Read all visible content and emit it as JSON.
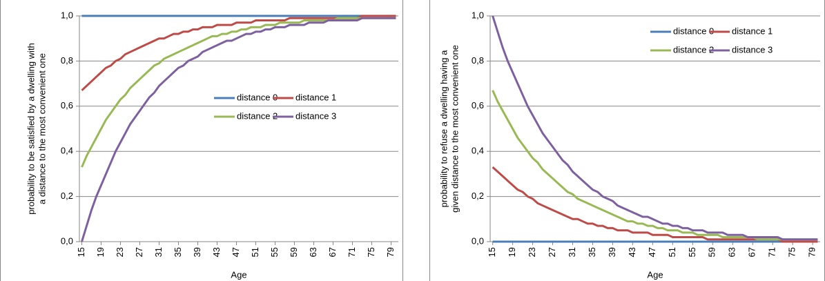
{
  "chart_data": [
    {
      "type": "line",
      "y_label": [
        "probability to be satisfied by a dwelling with",
        "a distance to the most convenient one"
      ],
      "x_label": "Age",
      "categories": [
        "15",
        null,
        null,
        null,
        "19",
        null,
        null,
        null,
        "23",
        null,
        null,
        null,
        "27",
        null,
        null,
        null,
        "31",
        null,
        null,
        null,
        "35",
        null,
        null,
        null,
        "39",
        null,
        null,
        null,
        "43",
        null,
        null,
        null,
        "47",
        null,
        null,
        null,
        "51",
        null,
        null,
        null,
        "55",
        null,
        null,
        null,
        "59",
        null,
        null,
        null,
        "63",
        null,
        null,
        null,
        "67",
        null,
        null,
        null,
        "71",
        null,
        null,
        null,
        "75",
        null,
        null,
        null,
        "79",
        null
      ],
      "ylim": [
        0,
        1
      ],
      "yticks": [
        {
          "value": 0,
          "label": "0,0"
        },
        {
          "value": 0.2,
          "label": "0,2"
        },
        {
          "value": 0.4,
          "label": "0,4"
        },
        {
          "value": 0.6,
          "label": "0,6"
        },
        {
          "value": 0.8,
          "label": "0,8"
        },
        {
          "value": 1,
          "label": "1,0"
        }
      ],
      "grid": true,
      "legend": "center-right",
      "series": [
        {
          "name": "distance 0",
          "color": "#4a7ebb",
          "values": [
            1,
            1,
            1,
            1,
            1,
            1,
            1,
            1,
            1,
            1,
            1,
            1,
            1,
            1,
            1,
            1,
            1,
            1,
            1,
            1,
            1,
            1,
            1,
            1,
            1,
            1,
            1,
            1,
            1,
            1,
            1,
            1,
            1,
            1,
            1,
            1,
            1,
            1,
            1,
            1,
            1,
            1,
            1,
            1,
            1,
            1,
            1,
            1,
            1,
            1,
            1,
            1,
            1,
            1,
            1,
            1,
            1,
            1,
            1,
            1,
            1,
            1,
            1,
            1,
            1,
            1
          ]
        },
        {
          "name": "distance 1",
          "color": "#be4b48",
          "values": [
            0.67,
            0.69,
            0.71,
            0.73,
            0.75,
            0.77,
            0.78,
            0.8,
            0.81,
            0.83,
            0.84,
            0.85,
            0.86,
            0.87,
            0.88,
            0.89,
            0.9,
            0.9,
            0.91,
            0.92,
            0.92,
            0.93,
            0.93,
            0.94,
            0.94,
            0.95,
            0.95,
            0.95,
            0.96,
            0.96,
            0.96,
            0.96,
            0.97,
            0.97,
            0.97,
            0.97,
            0.98,
            0.98,
            0.98,
            0.98,
            0.98,
            0.98,
            0.98,
            0.99,
            0.99,
            0.99,
            0.99,
            0.99,
            0.99,
            0.99,
            0.99,
            0.99,
            0.99,
            0.99,
            0.99,
            0.99,
            0.99,
            0.99,
            1,
            1,
            1,
            1,
            1,
            1,
            1,
            1
          ]
        },
        {
          "name": "distance 2",
          "color": "#98b954",
          "values": [
            0.33,
            0.38,
            0.42,
            0.46,
            0.5,
            0.54,
            0.57,
            0.6,
            0.63,
            0.65,
            0.68,
            0.7,
            0.72,
            0.74,
            0.76,
            0.78,
            0.79,
            0.81,
            0.82,
            0.83,
            0.84,
            0.85,
            0.86,
            0.87,
            0.88,
            0.89,
            0.9,
            0.91,
            0.91,
            0.92,
            0.92,
            0.93,
            0.93,
            0.94,
            0.94,
            0.95,
            0.95,
            0.95,
            0.96,
            0.96,
            0.96,
            0.97,
            0.97,
            0.97,
            0.97,
            0.97,
            0.98,
            0.98,
            0.98,
            0.98,
            0.98,
            0.98,
            0.98,
            0.99,
            0.99,
            0.99,
            0.99,
            0.99,
            0.99,
            0.99,
            0.99,
            0.99,
            0.99,
            0.99,
            0.99,
            0.99
          ]
        },
        {
          "name": "distance 3",
          "color": "#7d60a0",
          "values": [
            0,
            0.07,
            0.14,
            0.2,
            0.25,
            0.3,
            0.35,
            0.4,
            0.44,
            0.48,
            0.52,
            0.55,
            0.58,
            0.61,
            0.64,
            0.66,
            0.69,
            0.71,
            0.73,
            0.75,
            0.77,
            0.78,
            0.8,
            0.81,
            0.82,
            0.84,
            0.85,
            0.86,
            0.87,
            0.88,
            0.89,
            0.89,
            0.9,
            0.91,
            0.92,
            0.92,
            0.93,
            0.93,
            0.94,
            0.94,
            0.95,
            0.95,
            0.95,
            0.96,
            0.96,
            0.96,
            0.96,
            0.97,
            0.97,
            0.97,
            0.97,
            0.98,
            0.98,
            0.98,
            0.98,
            0.98,
            0.98,
            0.98,
            0.99,
            0.99,
            0.99,
            0.99,
            0.99,
            0.99,
            0.99,
            0.99
          ]
        }
      ]
    },
    {
      "type": "line",
      "y_label": [
        "probability to refuse a dwelling having a",
        "given distance to the most convenient one"
      ],
      "x_label": "Age",
      "categories": [
        "15",
        null,
        null,
        null,
        "19",
        null,
        null,
        null,
        "23",
        null,
        null,
        null,
        "27",
        null,
        null,
        null,
        "31",
        null,
        null,
        null,
        "35",
        null,
        null,
        null,
        "39",
        null,
        null,
        null,
        "43",
        null,
        null,
        null,
        "47",
        null,
        null,
        null,
        "51",
        null,
        null,
        null,
        "55",
        null,
        null,
        null,
        "59",
        null,
        null,
        null,
        "63",
        null,
        null,
        null,
        "67",
        null,
        null,
        null,
        "71",
        null,
        null,
        null,
        "75",
        null,
        null,
        null,
        "79",
        null
      ],
      "ylim": [
        0,
        1
      ],
      "yticks": [
        {
          "value": 0,
          "label": "0,0"
        },
        {
          "value": 0.2,
          "label": "0,2"
        },
        {
          "value": 0.4,
          "label": "0,4"
        },
        {
          "value": 0.6,
          "label": "0,6"
        },
        {
          "value": 0.8,
          "label": "0,8"
        },
        {
          "value": 1,
          "label": "1,0"
        }
      ],
      "grid": true,
      "legend": "top-right",
      "series": [
        {
          "name": "distance 0",
          "color": "#4a7ebb",
          "values": [
            0,
            0,
            0,
            0,
            0,
            0,
            0,
            0,
            0,
            0,
            0,
            0,
            0,
            0,
            0,
            0,
            0,
            0,
            0,
            0,
            0,
            0,
            0,
            0,
            0,
            0,
            0,
            0,
            0,
            0,
            0,
            0,
            0,
            0,
            0,
            0,
            0,
            0,
            0,
            0,
            0,
            0,
            0,
            0,
            0,
            0,
            0,
            0,
            0,
            0,
            0,
            0,
            0,
            0,
            0,
            0,
            0,
            0,
            0,
            0,
            0,
            0,
            0,
            0,
            0,
            0
          ]
        },
        {
          "name": "distance 1",
          "color": "#be4b48",
          "values": [
            0.33,
            0.31,
            0.29,
            0.27,
            0.25,
            0.23,
            0.22,
            0.2,
            0.19,
            0.17,
            0.16,
            0.15,
            0.14,
            0.13,
            0.12,
            0.11,
            0.1,
            0.1,
            0.09,
            0.08,
            0.08,
            0.07,
            0.07,
            0.06,
            0.06,
            0.05,
            0.05,
            0.05,
            0.04,
            0.04,
            0.04,
            0.04,
            0.03,
            0.03,
            0.03,
            0.03,
            0.02,
            0.02,
            0.02,
            0.02,
            0.02,
            0.02,
            0.02,
            0.01,
            0.01,
            0.01,
            0.01,
            0.01,
            0.01,
            0.01,
            0.01,
            0.01,
            0.01,
            0.01,
            0.01,
            0.01,
            0.01,
            0.01,
            0,
            0,
            0,
            0,
            0,
            0,
            0,
            0
          ]
        },
        {
          "name": "distance 2",
          "color": "#98b954",
          "values": [
            0.67,
            0.62,
            0.58,
            0.54,
            0.5,
            0.46,
            0.43,
            0.4,
            0.37,
            0.35,
            0.32,
            0.3,
            0.28,
            0.26,
            0.24,
            0.22,
            0.21,
            0.19,
            0.18,
            0.17,
            0.16,
            0.15,
            0.14,
            0.13,
            0.12,
            0.11,
            0.1,
            0.09,
            0.09,
            0.08,
            0.08,
            0.07,
            0.07,
            0.06,
            0.06,
            0.05,
            0.05,
            0.05,
            0.04,
            0.04,
            0.04,
            0.03,
            0.03,
            0.03,
            0.03,
            0.03,
            0.02,
            0.02,
            0.02,
            0.02,
            0.02,
            0.02,
            0.02,
            0.01,
            0.01,
            0.01,
            0.01,
            0.01,
            0.01,
            0.01,
            0.01,
            0.01,
            0.01,
            0.01,
            0.01,
            0.01
          ]
        },
        {
          "name": "distance 3",
          "color": "#7d60a0",
          "values": [
            1,
            0.93,
            0.86,
            0.8,
            0.75,
            0.7,
            0.65,
            0.6,
            0.56,
            0.52,
            0.48,
            0.45,
            0.42,
            0.39,
            0.36,
            0.34,
            0.31,
            0.29,
            0.27,
            0.25,
            0.23,
            0.22,
            0.2,
            0.19,
            0.18,
            0.16,
            0.15,
            0.14,
            0.13,
            0.12,
            0.11,
            0.11,
            0.1,
            0.09,
            0.08,
            0.08,
            0.07,
            0.07,
            0.06,
            0.06,
            0.05,
            0.05,
            0.05,
            0.04,
            0.04,
            0.04,
            0.04,
            0.03,
            0.03,
            0.03,
            0.03,
            0.02,
            0.02,
            0.02,
            0.02,
            0.02,
            0.02,
            0.02,
            0.01,
            0.01,
            0.01,
            0.01,
            0.01,
            0.01,
            0.01,
            0.01
          ]
        }
      ]
    }
  ]
}
